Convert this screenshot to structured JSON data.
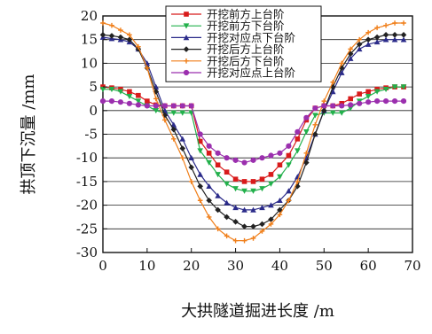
{
  "chart_data": {
    "type": "line",
    "title": "",
    "xlabel": "大拱隧道掘进长度 /m",
    "ylabel": "拱顶下沉量 /mm",
    "xlim": [
      0,
      70
    ],
    "ylim": [
      -30,
      20
    ],
    "xticks": [
      0,
      10,
      20,
      30,
      40,
      50,
      60,
      70
    ],
    "yticks": [
      20,
      15,
      10,
      5,
      0,
      -5,
      -10,
      -15,
      -20,
      -25,
      -30
    ],
    "grid": "horizontal",
    "legend_position": "top-center",
    "series": [
      {
        "name": "开挖前方上台阶",
        "color": "#d81b1b",
        "marker": "square",
        "x": [
          0,
          2,
          4,
          6,
          8,
          10,
          12,
          14,
          16,
          18,
          20,
          22,
          24,
          26,
          28,
          30,
          32,
          34,
          36,
          38,
          40,
          42,
          44,
          46,
          48,
          50,
          52,
          54,
          56,
          58,
          60,
          62,
          64,
          66,
          68
        ],
        "y": [
          5,
          4.8,
          4.5,
          4,
          3.2,
          2,
          1.2,
          1,
          1,
          1,
          1,
          -6.5,
          -9,
          -11.5,
          -13,
          -14.5,
          -15,
          -15,
          -14.5,
          -13.5,
          -11.5,
          -9.5,
          -6,
          -2,
          0.5,
          1,
          1,
          1.5,
          2.5,
          3.5,
          4,
          4.5,
          4.8,
          5,
          5
        ]
      },
      {
        "name": "开挖前方下台阶",
        "color": "#22b04b",
        "marker": "triangle-down",
        "x": [
          0,
          2,
          4,
          6,
          8,
          10,
          12,
          14,
          16,
          18,
          20,
          22,
          24,
          26,
          28,
          30,
          32,
          34,
          36,
          38,
          40,
          42,
          44,
          46,
          48,
          50,
          52,
          54,
          56,
          58,
          60,
          62,
          64,
          66,
          68
        ],
        "y": [
          4.5,
          4.5,
          4,
          3,
          2,
          1,
          0,
          -0.5,
          -0.5,
          -0.5,
          -0.5,
          -8.5,
          -11,
          -13.5,
          -15.5,
          -16.5,
          -17,
          -17,
          -16.5,
          -15.5,
          -14,
          -11.5,
          -8.5,
          -4.5,
          -1,
          -0.5,
          -0.5,
          -0.5,
          0.5,
          2,
          3,
          4,
          4.5,
          5,
          5
        ]
      },
      {
        "name": "开挖对应点下台阶",
        "color": "#2b2b8a",
        "marker": "triangle-up",
        "x": [
          0,
          2,
          4,
          6,
          8,
          10,
          12,
          14,
          16,
          18,
          20,
          22,
          24,
          26,
          28,
          30,
          32,
          34,
          36,
          38,
          40,
          42,
          44,
          46,
          48,
          50,
          52,
          54,
          56,
          58,
          60,
          62,
          64,
          66,
          68
        ],
        "y": [
          15.5,
          15.2,
          15,
          14.5,
          13,
          10,
          5,
          0,
          -3,
          -6,
          -10,
          -13.5,
          -16,
          -18,
          -19.5,
          -20.5,
          -21,
          -21,
          -20.5,
          -20,
          -19,
          -17,
          -14,
          -10,
          -5,
          0,
          4,
          8,
          11,
          13,
          14,
          14.5,
          15,
          15,
          15
        ]
      },
      {
        "name": "开挖后方上台阶",
        "color": "#222222",
        "marker": "diamond",
        "x": [
          0,
          2,
          4,
          6,
          8,
          10,
          12,
          14,
          16,
          18,
          20,
          22,
          24,
          26,
          28,
          30,
          32,
          34,
          36,
          38,
          40,
          42,
          44,
          46,
          48,
          50,
          52,
          54,
          56,
          58,
          60,
          62,
          64,
          66,
          68
        ],
        "y": [
          16,
          15.8,
          15.5,
          15,
          13,
          9,
          4,
          -1,
          -4,
          -8,
          -12,
          -16,
          -19,
          -21,
          -22.5,
          -23.5,
          -24.5,
          -24.5,
          -24,
          -23,
          -21,
          -19,
          -16,
          -11,
          -5,
          0,
          5,
          9,
          12,
          14,
          15,
          15.5,
          16,
          16,
          16
        ]
      },
      {
        "name": "开挖后方下台阶",
        "color": "#f07f1a",
        "marker": "plus",
        "x": [
          0,
          2,
          4,
          6,
          8,
          10,
          12,
          14,
          16,
          18,
          20,
          22,
          24,
          26,
          28,
          30,
          32,
          34,
          36,
          38,
          40,
          42,
          44,
          46,
          48,
          50,
          52,
          54,
          56,
          58,
          60,
          62,
          64,
          66,
          68
        ],
        "y": [
          18.5,
          18,
          17,
          16,
          13.5,
          9,
          2.5,
          -2,
          -6,
          -10,
          -15,
          -19,
          -22.5,
          -25,
          -26.5,
          -27.5,
          -27.5,
          -27,
          -25.5,
          -24,
          -22,
          -19,
          -15,
          -9,
          -3,
          2,
          6,
          10,
          13,
          15,
          16.5,
          17.5,
          18,
          18.5,
          18.5
        ]
      },
      {
        "name": "开挖对应点上台阶",
        "color": "#9b2fae",
        "marker": "circle",
        "x": [
          0,
          2,
          4,
          6,
          8,
          10,
          12,
          14,
          16,
          18,
          20,
          22,
          24,
          26,
          28,
          30,
          32,
          34,
          36,
          38,
          40,
          42,
          44,
          46,
          48,
          50,
          52,
          54,
          56,
          58,
          60,
          62,
          64,
          66,
          68
        ],
        "y": [
          2,
          2,
          1.8,
          1.5,
          1.2,
          1,
          1,
          1,
          1,
          1,
          1,
          -5,
          -7.5,
          -9,
          -10,
          -10.5,
          -11,
          -10.5,
          -10,
          -9.5,
          -9,
          -7.5,
          -4.5,
          -1.5,
          0.5,
          1,
          1,
          1,
          1.2,
          1.5,
          1.8,
          2,
          2,
          2,
          2
        ]
      }
    ]
  }
}
